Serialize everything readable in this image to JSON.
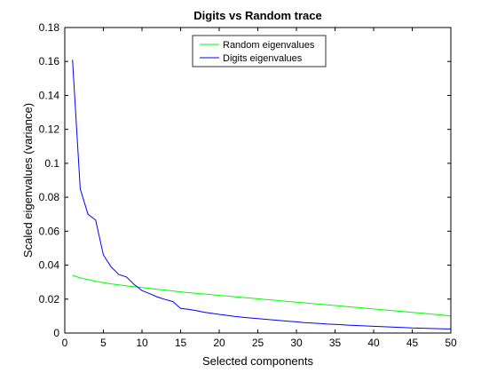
{
  "chart_data": {
    "type": "line",
    "title": "Digits vs Random trace",
    "xlabel": "Selected components",
    "ylabel": "Scaled eigenvalues (variance)",
    "xlim": [
      0,
      50
    ],
    "ylim": [
      0,
      0.18
    ],
    "xticks": [
      0,
      5,
      10,
      15,
      20,
      25,
      30,
      35,
      40,
      45,
      50
    ],
    "yticks": [
      0,
      0.02,
      0.04,
      0.06,
      0.08,
      0.1,
      0.12,
      0.14,
      0.16,
      0.18
    ],
    "grid": false,
    "legend_position": "top-center",
    "series": [
      {
        "name": "Random eigenvalues",
        "color": "#00ff00",
        "x": [
          1,
          2,
          3,
          4,
          5,
          6,
          7,
          8,
          9,
          10,
          11,
          12,
          13,
          14,
          15,
          16,
          17,
          18,
          19,
          20,
          21,
          22,
          23,
          24,
          25,
          26,
          27,
          28,
          29,
          30,
          31,
          32,
          33,
          34,
          35,
          36,
          37,
          38,
          39,
          40,
          41,
          42,
          43,
          44,
          45,
          46,
          47,
          48,
          49,
          50
        ],
        "y": [
          0.034,
          0.0325,
          0.0315,
          0.0305,
          0.0297,
          0.029,
          0.0284,
          0.0278,
          0.0273,
          0.0268,
          0.0263,
          0.0258,
          0.0253,
          0.0248,
          0.0243,
          0.0238,
          0.0234,
          0.023,
          0.0226,
          0.0222,
          0.0218,
          0.0214,
          0.021,
          0.0206,
          0.0202,
          0.0198,
          0.0194,
          0.019,
          0.0186,
          0.0182,
          0.0178,
          0.0174,
          0.017,
          0.0166,
          0.0162,
          0.0158,
          0.0154,
          0.015,
          0.0146,
          0.0142,
          0.0138,
          0.0134,
          0.013,
          0.0126,
          0.0122,
          0.0118,
          0.0114,
          0.011,
          0.0105,
          0.01
        ]
      },
      {
        "name": "Digits eigenvalues",
        "color": "#0000ff",
        "x": [
          1,
          2,
          3,
          4,
          5,
          6,
          7,
          8,
          9,
          10,
          11,
          12,
          13,
          14,
          15,
          16,
          17,
          18,
          19,
          20,
          21,
          22,
          23,
          24,
          25,
          26,
          27,
          28,
          29,
          30,
          31,
          32,
          33,
          34,
          35,
          36,
          37,
          38,
          39,
          40,
          41,
          42,
          43,
          44,
          45,
          46,
          47,
          48,
          49,
          50
        ],
        "y": [
          0.161,
          0.085,
          0.07,
          0.0665,
          0.046,
          0.039,
          0.0345,
          0.033,
          0.0285,
          0.025,
          0.0232,
          0.0212,
          0.0198,
          0.0185,
          0.0145,
          0.014,
          0.0132,
          0.0123,
          0.0116,
          0.011,
          0.0104,
          0.0098,
          0.0093,
          0.0089,
          0.0085,
          0.0081,
          0.0077,
          0.0073,
          0.0069,
          0.0066,
          0.0062,
          0.0059,
          0.0056,
          0.0053,
          0.0051,
          0.0048,
          0.0046,
          0.0044,
          0.0042,
          0.004,
          0.0038,
          0.0036,
          0.0034,
          0.0032,
          0.003,
          0.0029,
          0.0027,
          0.0026,
          0.0025,
          0.0024
        ]
      }
    ]
  }
}
